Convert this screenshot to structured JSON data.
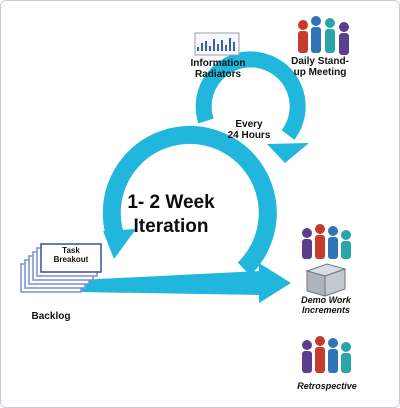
{
  "center_label": [
    "1- 2 Week",
    "Iteration"
  ],
  "every_label": [
    "Every",
    "24 Hours"
  ],
  "info_radiators_label": [
    "Information",
    "Radiators"
  ],
  "standup_label": [
    "Daily Stand-",
    "up Meeting"
  ],
  "task_label": [
    "Task",
    "Breakout"
  ],
  "backlog_label": "Backlog",
  "demo_label": [
    "Demo Work",
    "Increments"
  ],
  "retro_label": "Retrospective",
  "colors": {
    "cycle": "#21b6dc",
    "person_red": "#c73a2e",
    "person_blue": "#2f74b8",
    "person_teal": "#2aa6a8",
    "person_purple": "#5b3f8f",
    "card_border": "#7a8fd1"
  }
}
